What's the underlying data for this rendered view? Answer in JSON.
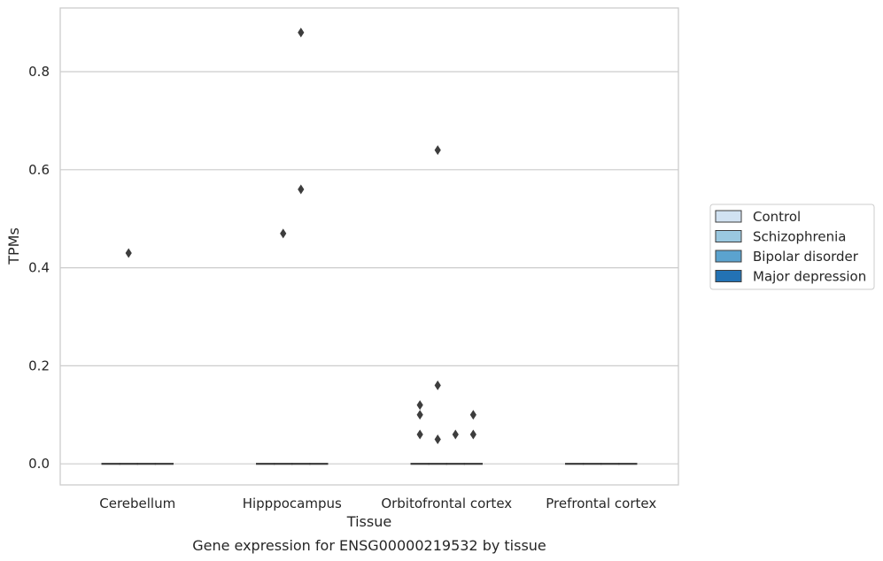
{
  "chart_data": {
    "type": "box",
    "xlabel": "Tissue",
    "ylabel": "TPMs",
    "caption": "Gene expression for ENSG00000219532 by tissue",
    "categories": [
      "Cerebellum",
      "Hipppocampus",
      "Orbitofrontal cortex",
      "Prefrontal cortex"
    ],
    "ylim": [
      -0.043,
      0.93
    ],
    "yticks": [
      0.0,
      0.2,
      0.4,
      0.6,
      0.8
    ],
    "ytick_labels": [
      "0.0",
      "0.2",
      "0.4",
      "0.6",
      "0.8"
    ],
    "grid": "horizontal",
    "legend_position": "right",
    "series": [
      {
        "name": "Control",
        "color": "#d1e2f2"
      },
      {
        "name": "Schizophrenia",
        "color": "#9ac8e0"
      },
      {
        "name": "Bipolar disorder",
        "color": "#5ba3cf"
      },
      {
        "name": "Major depression",
        "color": "#2372b4"
      }
    ],
    "boxes": [
      {
        "category": "Cerebellum",
        "series": "Control",
        "median": 0,
        "q1": 0,
        "q3": 0,
        "outliers": []
      },
      {
        "category": "Cerebellum",
        "series": "Schizophrenia",
        "median": 0,
        "q1": 0,
        "q3": 0,
        "outliers": [
          0.43
        ]
      },
      {
        "category": "Cerebellum",
        "series": "Bipolar disorder",
        "median": 0,
        "q1": 0,
        "q3": 0,
        "outliers": []
      },
      {
        "category": "Cerebellum",
        "series": "Major depression",
        "median": 0,
        "q1": 0,
        "q3": 0,
        "outliers": []
      },
      {
        "category": "Hipppocampus",
        "series": "Control",
        "median": 0,
        "q1": 0,
        "q3": 0,
        "outliers": []
      },
      {
        "category": "Hipppocampus",
        "series": "Schizophrenia",
        "median": 0,
        "q1": 0,
        "q3": 0,
        "outliers": [
          0.47
        ]
      },
      {
        "category": "Hipppocampus",
        "series": "Bipolar disorder",
        "median": 0,
        "q1": 0,
        "q3": 0,
        "outliers": [
          0.88,
          0.56
        ]
      },
      {
        "category": "Hipppocampus",
        "series": "Major depression",
        "median": 0,
        "q1": 0,
        "q3": 0,
        "outliers": []
      },
      {
        "category": "Orbitofrontal cortex",
        "series": "Control",
        "median": 0,
        "q1": 0,
        "q3": 0,
        "outliers": [
          0.12,
          0.1,
          0.06
        ]
      },
      {
        "category": "Orbitofrontal cortex",
        "series": "Schizophrenia",
        "median": 0,
        "q1": 0,
        "q3": 0,
        "outliers": [
          0.64,
          0.16,
          0.05
        ]
      },
      {
        "category": "Orbitofrontal cortex",
        "series": "Bipolar disorder",
        "median": 0,
        "q1": 0,
        "q3": 0,
        "outliers": [
          0.06
        ]
      },
      {
        "category": "Orbitofrontal cortex",
        "series": "Major depression",
        "median": 0,
        "q1": 0,
        "q3": 0,
        "outliers": [
          0.1,
          0.06
        ]
      },
      {
        "category": "Prefrontal cortex",
        "series": "Control",
        "median": 0,
        "q1": 0,
        "q3": 0,
        "outliers": []
      },
      {
        "category": "Prefrontal cortex",
        "series": "Schizophrenia",
        "median": 0,
        "q1": 0,
        "q3": 0,
        "outliers": []
      },
      {
        "category": "Prefrontal cortex",
        "series": "Bipolar disorder",
        "median": 0,
        "q1": 0,
        "q3": 0,
        "outliers": []
      },
      {
        "category": "Prefrontal cortex",
        "series": "Major depression",
        "median": 0,
        "q1": 0,
        "q3": 0,
        "outliers": []
      }
    ]
  }
}
